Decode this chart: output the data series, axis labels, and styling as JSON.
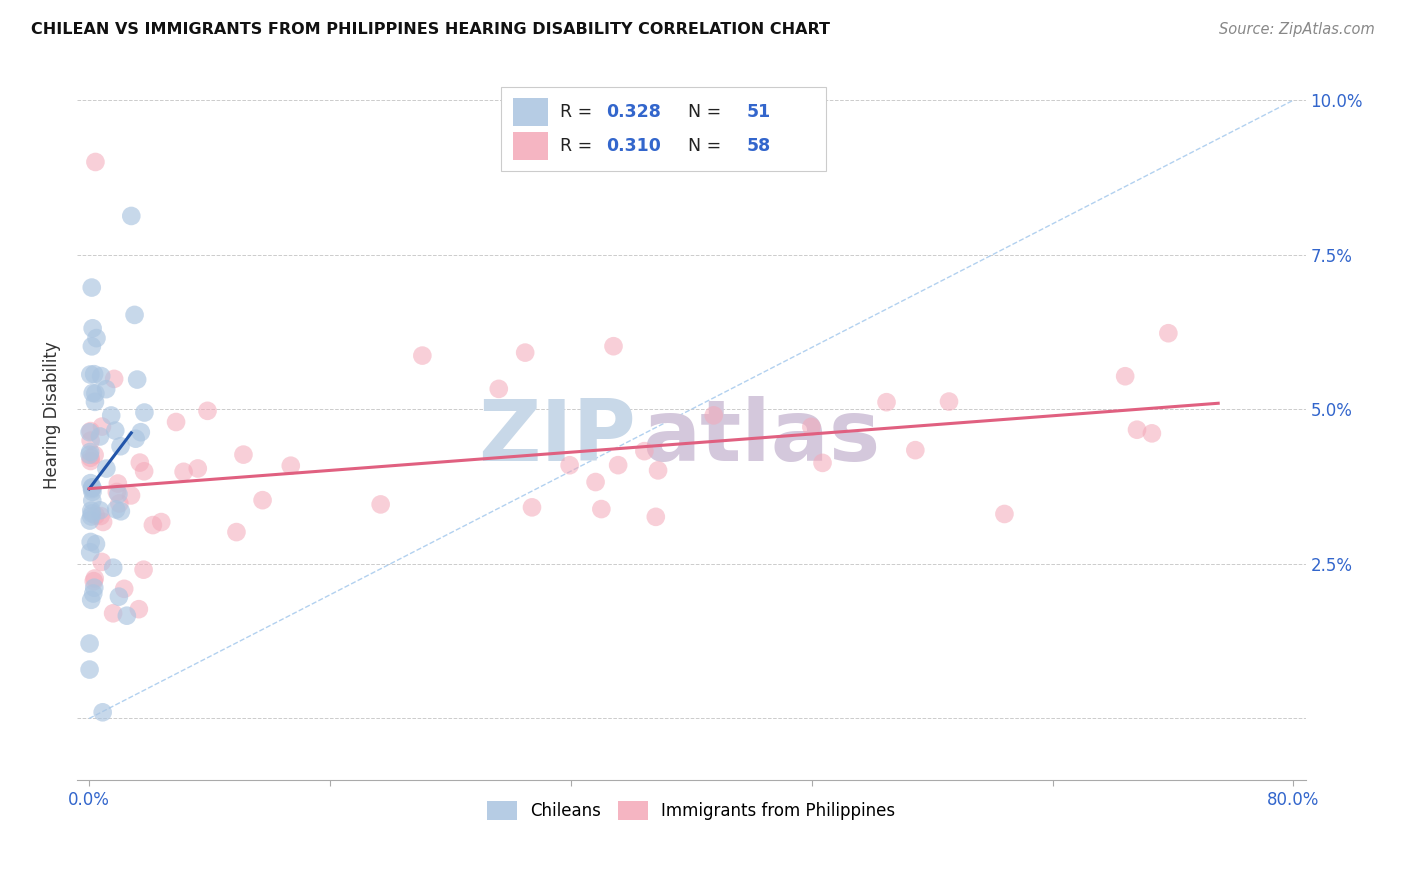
{
  "title": "CHILEAN VS IMMIGRANTS FROM PHILIPPINES HEARING DISABILITY CORRELATION CHART",
  "source": "Source: ZipAtlas.com",
  "ylabel": "Hearing Disability",
  "background_color": "#ffffff",
  "grid_color": "#cccccc",
  "chileans_color": "#aac4e0",
  "philippines_color": "#f4a8b8",
  "chileans_line_color": "#2255aa",
  "philippines_line_color": "#e06080",
  "diagonal_color": "#aaccee",
  "watermark_zip_color": "#c8d8e8",
  "watermark_atlas_color": "#d0c8d8",
  "legend_box_color": "#eeeeee",
  "r1_val": "0.328",
  "n1_val": "51",
  "r2_val": "0.310",
  "n2_val": "58",
  "value_color_blue": "#3366cc",
  "value_color_pink": "#e06080"
}
